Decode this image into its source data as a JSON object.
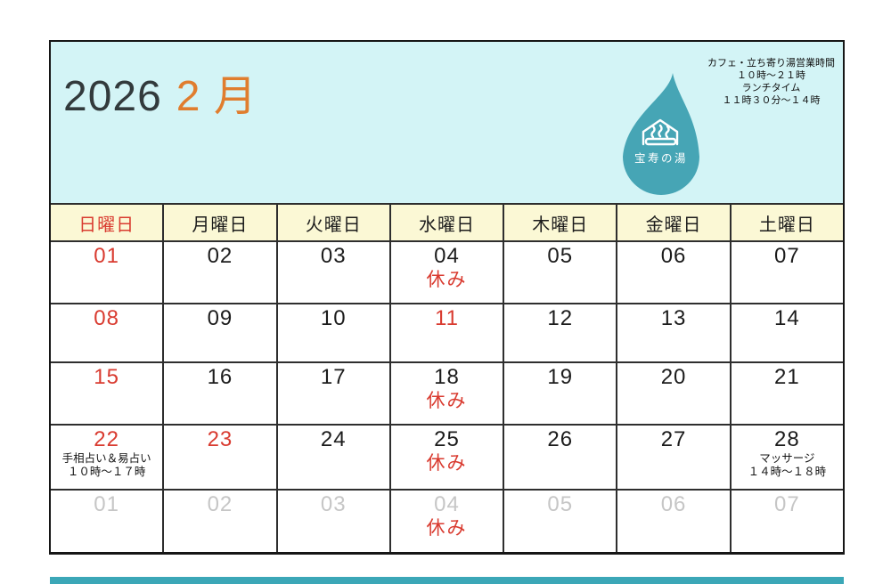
{
  "header": {
    "year": "2026",
    "month": "2 月",
    "hours_lines": [
      "カフェ・立ち寄り湯営業時間",
      "１０時～２１時",
      "ランチタイム",
      "１１時３０分～１４時"
    ],
    "logo_text": "宝寿の湯"
  },
  "weekday_headers": [
    {
      "label": "日曜日",
      "red": true
    },
    {
      "label": "月曜日"
    },
    {
      "label": "火曜日"
    },
    {
      "label": "水曜日"
    },
    {
      "label": "木曜日"
    },
    {
      "label": "金曜日"
    },
    {
      "label": "土曜日"
    }
  ],
  "weeks": [
    [
      {
        "day": "01",
        "red": true
      },
      {
        "day": "02"
      },
      {
        "day": "03"
      },
      {
        "day": "04",
        "closed": "休み"
      },
      {
        "day": "05"
      },
      {
        "day": "06"
      },
      {
        "day": "07"
      }
    ],
    [
      {
        "day": "08",
        "red": true
      },
      {
        "day": "09"
      },
      {
        "day": "10"
      },
      {
        "day": "11",
        "red": true
      },
      {
        "day": "12"
      },
      {
        "day": "13"
      },
      {
        "day": "14"
      }
    ],
    [
      {
        "day": "15",
        "red": true
      },
      {
        "day": "16"
      },
      {
        "day": "17"
      },
      {
        "day": "18",
        "closed": "休み"
      },
      {
        "day": "19"
      },
      {
        "day": "20"
      },
      {
        "day": "21"
      }
    ],
    [
      {
        "day": "22",
        "red": true,
        "notes": [
          "手相占い＆易占い",
          "１０時～１７時"
        ]
      },
      {
        "day": "23",
        "red": true
      },
      {
        "day": "24"
      },
      {
        "day": "25",
        "closed": "休み"
      },
      {
        "day": "26"
      },
      {
        "day": "27"
      },
      {
        "day": "28",
        "notes": [
          "マッサージ",
          "１４時～１８時"
        ]
      }
    ],
    [
      {
        "day": "01",
        "muted": true
      },
      {
        "day": "02",
        "muted": true
      },
      {
        "day": "03",
        "muted": true
      },
      {
        "day": "04",
        "muted": true,
        "closed": "休み"
      },
      {
        "day": "05",
        "muted": true
      },
      {
        "day": "06",
        "muted": true
      },
      {
        "day": "07",
        "muted": true
      }
    ]
  ],
  "colors": {
    "header_cyan": "#d3f4f6",
    "weekday_yellow": "#fbf8d5",
    "sunday_red": "#d93b30",
    "month_orange": "#e07d2e",
    "logo_teal": "#46a5b5",
    "footer_teal": "#3ba7b7",
    "muted_gray": "#c6c6c6",
    "grid_line": "#2e2e2e"
  }
}
